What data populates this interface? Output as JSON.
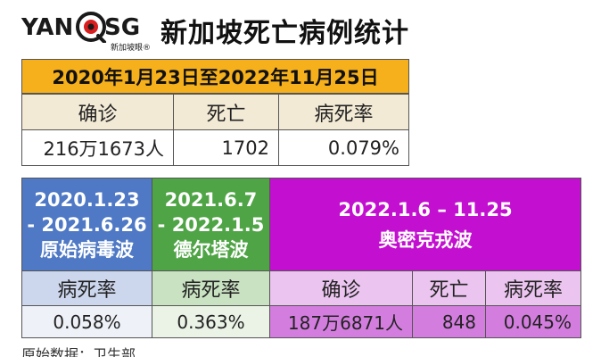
{
  "header": {
    "logo_left": "YAN",
    "logo_right": "SG",
    "logo_sub": "新加坡眼®",
    "title": "新加坡死亡病例统计"
  },
  "overall": {
    "period": "2020年1月23日至2022年11月25日",
    "headers": [
      "确诊",
      "死亡",
      "病死率"
    ],
    "values": [
      "216万1673人",
      "1702",
      "0.079%"
    ]
  },
  "waves": {
    "original": {
      "period_line1": "2020.1.23",
      "period_line2": "- 2021.6.26",
      "name": "原始病毒波",
      "header": "病死率",
      "value": "0.058%"
    },
    "delta": {
      "period_line1": "2021.6.7",
      "period_line2": "- 2022.1.5",
      "name": "德尔塔波",
      "header": "病死率",
      "value": "0.363%"
    },
    "omicron": {
      "period": "2022.1.6 – 11.25",
      "name": "奥密克戎波",
      "headers": [
        "确诊",
        "死亡",
        "病死率"
      ],
      "values": [
        "187万6871人",
        "848",
        "0.045%"
      ]
    }
  },
  "footer": {
    "source": "原始数据：卫生部"
  },
  "colors": {
    "overall_header": "#f6b01c",
    "original_wave": "#4f79c5",
    "delta_wave": "#4fa445",
    "omicron_wave": "#c30fd0"
  }
}
